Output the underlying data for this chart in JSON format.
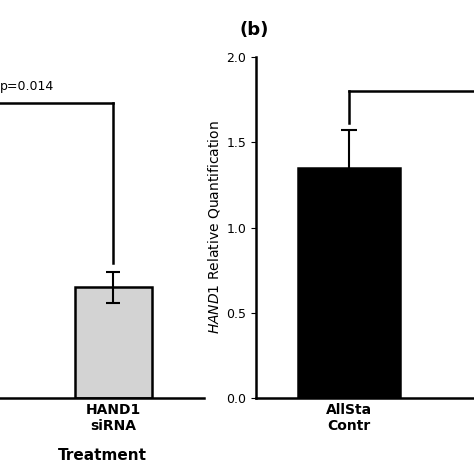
{
  "panel_b_label": "(b)",
  "value_hand1": 0.65,
  "error_hand1": 0.09,
  "bar_color_hand1": "#d3d3d3",
  "value_allstars": 1.35,
  "error_allstars": 0.22,
  "bar_color_allstars": "#000000",
  "ylabel_b": "HAND1 Relative Quantification",
  "ylim": [
    0.0,
    2.0
  ],
  "yticks": [
    0.0,
    0.5,
    1.0,
    1.5,
    2.0
  ],
  "sig_text_a": "p=0.014",
  "xlabel": "Treatment",
  "background_color": "#ffffff",
  "fontsize_label": 10,
  "fontsize_tick": 9,
  "fontsize_panel": 13,
  "fontsize_sig": 9
}
